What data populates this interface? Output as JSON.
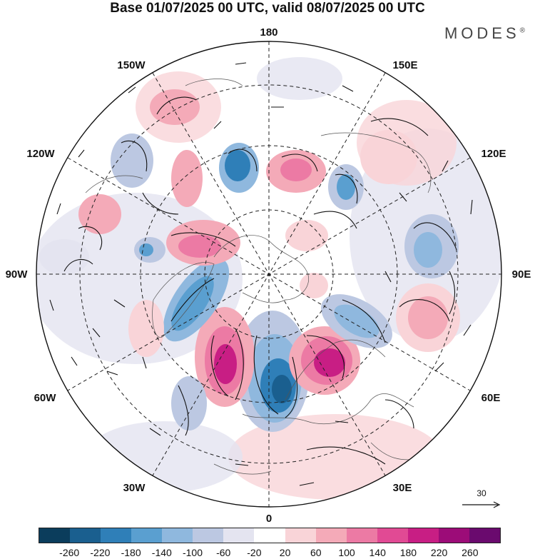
{
  "title": "Base 01/07/2025 00 UTC, valid 08/07/2025 00 UTC",
  "brand": {
    "text": "MODES",
    "mark": "®"
  },
  "map": {
    "projection": "north polar stereographic",
    "longitude_labels": {
      "top": "180",
      "top_left": "150W",
      "top_right": "150E",
      "upper_left": "120W",
      "upper_right": "120E",
      "left": "90W",
      "right": "90E",
      "lower_left": "60W",
      "lower_right": "60E",
      "bottom_left": "30W",
      "bottom_right": "30E",
      "bottom": "0"
    },
    "vector_reference": {
      "value": "30",
      "icon": "arrow-right-icon"
    }
  },
  "colorbar": {
    "colors": [
      "#0b3d5c",
      "#1a5f8f",
      "#2f7fb8",
      "#5a9fd0",
      "#8fb8de",
      "#bcc8e2",
      "#e4e4f0",
      "#ffffff",
      "#f9d4d8",
      "#f4aab8",
      "#ec7aa4",
      "#e14a94",
      "#c81e84",
      "#9c0c78",
      "#6a0a6e"
    ],
    "ticks": [
      "-260",
      "-220",
      "-180",
      "-140",
      "-100",
      "-60",
      "-20",
      "20",
      "60",
      "100",
      "140",
      "180",
      "220",
      "260"
    ]
  },
  "colors": {
    "negative_accent": "#1a5f8f",
    "positive_accent": "#c81e84"
  }
}
